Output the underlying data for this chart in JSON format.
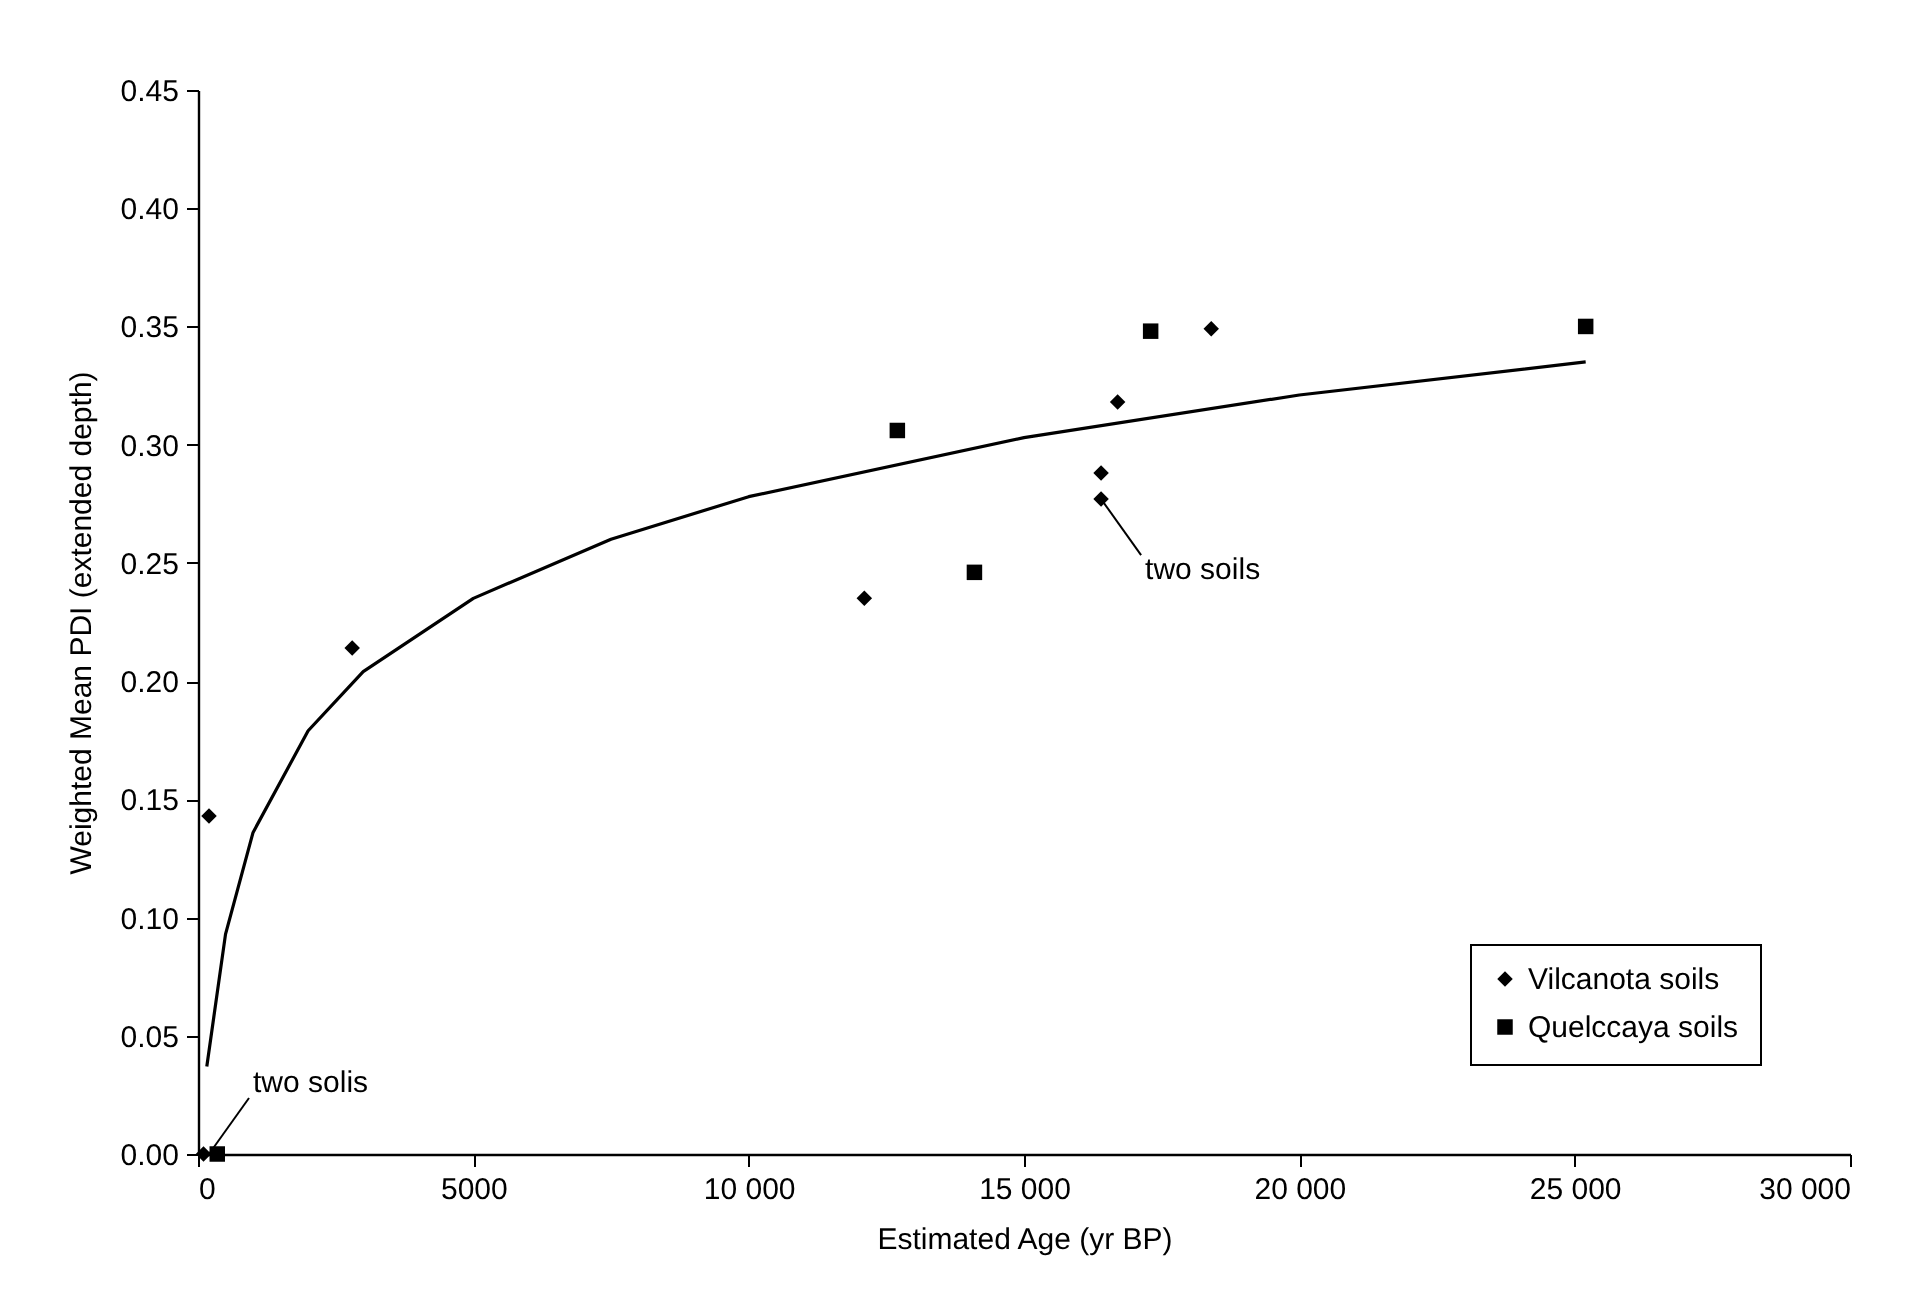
{
  "chart_data": {
    "type": "scatter",
    "xlabel": "Estimated Age (yr BP)",
    "ylabel": "Weighted Mean PDI (extended depth)",
    "xlim": [
      0,
      30000
    ],
    "xticks": [
      0,
      5000,
      {
        "value": 10000,
        "label": "10 000"
      },
      {
        "value": 15000,
        "label": "15 000"
      },
      {
        "value": 20000,
        "label": "20 000"
      },
      {
        "value": 25000,
        "label": "25 000"
      },
      {
        "value": 30000,
        "label": "30 000"
      }
    ],
    "ylim": [
      0,
      0.45
    ],
    "yticks": [
      {
        "value": 0,
        "label": "0.00"
      },
      {
        "value": 0.05,
        "label": "0.05"
      },
      {
        "value": 0.1,
        "label": "0.10"
      },
      {
        "value": 0.15,
        "label": "0.15"
      },
      {
        "value": 0.2,
        "label": "0.20"
      },
      {
        "value": 0.25,
        "label": "0.25"
      },
      {
        "value": 0.3,
        "label": "0.30"
      },
      {
        "value": 0.35,
        "label": "0.35"
      },
      {
        "value": 0.4,
        "label": "0.40"
      },
      {
        "value": 0.45,
        "label": "0.45"
      }
    ],
    "series": [
      {
        "name": "Vilcanota soils",
        "color": "#000000",
        "marker": "diamond",
        "x": [
          100,
          200,
          2800,
          12100,
          16400,
          16400,
          16700,
          18400
        ],
        "values": [
          0,
          0.143,
          0.214,
          0.235,
          0.277,
          0.288,
          0.318,
          0.349
        ]
      },
      {
        "name": "Quelccaya soils",
        "color": "#000000",
        "marker": "square",
        "x": [
          350,
          12700,
          14100,
          17300,
          25200
        ],
        "values": [
          0,
          0.306,
          0.246,
          0.348,
          0.35
        ]
      },
      {
        "type": "line",
        "color": "#000000",
        "marker": "none",
        "line_style": "solid",
        "x": [
          160,
          500,
          1000,
          2000,
          3000,
          5000,
          7500,
          10000,
          15000,
          20000,
          25200
        ],
        "values": [
          0.037,
          0.093,
          0.136,
          0.179,
          0.204,
          0.235,
          0.26,
          0.278,
          0.303,
          0.321,
          0.335
        ]
      }
    ],
    "annotations": [
      {
        "text": "two solis",
        "x": 200,
        "y": 0
      },
      {
        "text": "two soils",
        "x": 16400,
        "y": 0.277
      }
    ],
    "legend": "bottom right",
    "grid": false
  }
}
